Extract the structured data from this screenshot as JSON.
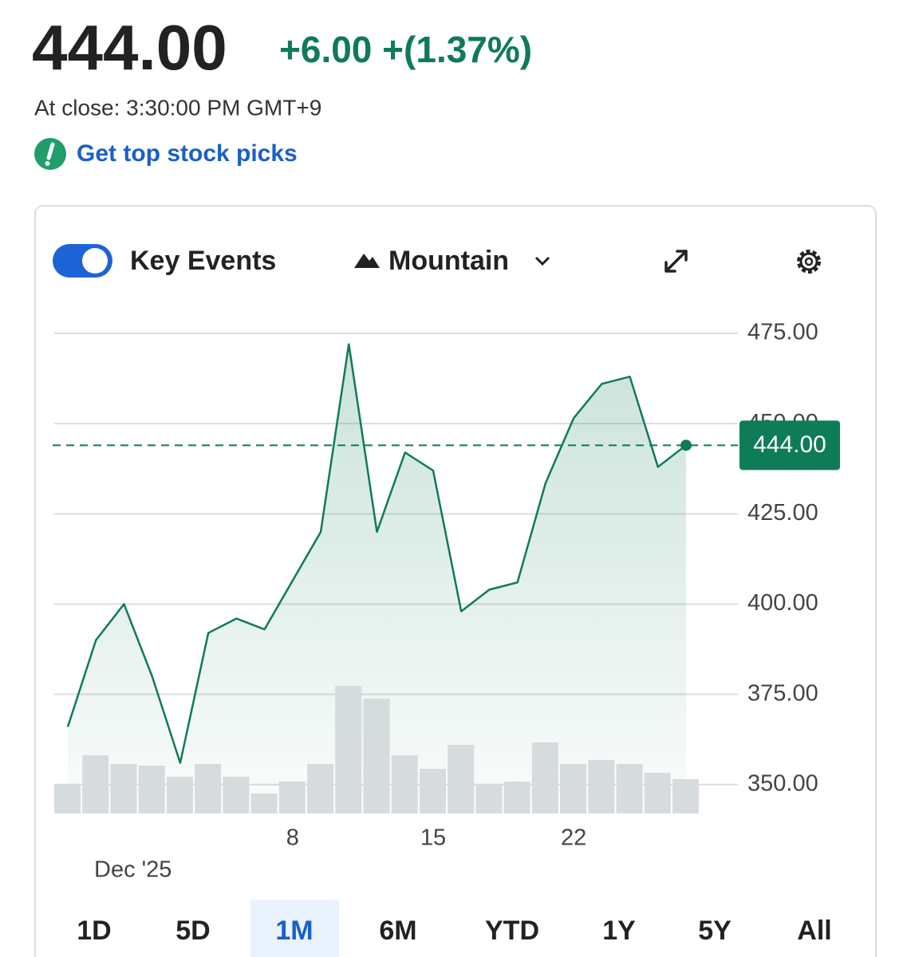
{
  "header": {
    "price": "444.00",
    "change": "+6.00 +(1.37%)",
    "close_time": "At close: 3:30:00 PM GMT+9",
    "link": "Get top stock picks"
  },
  "toolbar": {
    "key_events": "Key Events",
    "chart_style": "Mountain"
  },
  "ranges": [
    "1D",
    "5D",
    "1M",
    "6M",
    "YTD",
    "1Y",
    "5Y",
    "All"
  ],
  "selected_range": "1M",
  "chart_data": {
    "type": "area",
    "color": "#0f7b55",
    "categories": [
      null,
      null,
      null,
      null,
      null,
      null,
      null,
      null,
      "8",
      null,
      null,
      null,
      null,
      "15",
      null,
      null,
      null,
      null,
      "22",
      null,
      null,
      null,
      null
    ],
    "x_annotation": "Dec '25",
    "values": [
      366,
      390,
      400,
      380,
      356,
      392,
      396,
      393,
      406.5,
      420,
      472,
      420,
      442,
      437,
      398,
      404,
      406,
      433.5,
      451.5,
      461,
      463,
      438,
      444
    ],
    "volume": {
      "color": "#d6dbde",
      "values": [
        37,
        73,
        62,
        60,
        46,
        62,
        46,
        25,
        40,
        62,
        160,
        144,
        73,
        56,
        86,
        35,
        40,
        89,
        62,
        67,
        62,
        51,
        43
      ]
    },
    "last_value_label": "444.00",
    "ylim": [
      342,
      475
    ],
    "yticks": [
      {
        "value": 350,
        "label": "350.00"
      },
      {
        "value": 375,
        "label": "375.00"
      },
      {
        "value": 400,
        "label": "400.00"
      },
      {
        "value": 425,
        "label": "425.00"
      },
      {
        "value": 450,
        "label": "450.00"
      },
      {
        "value": 475,
        "label": "475.00"
      }
    ],
    "grid": true
  }
}
